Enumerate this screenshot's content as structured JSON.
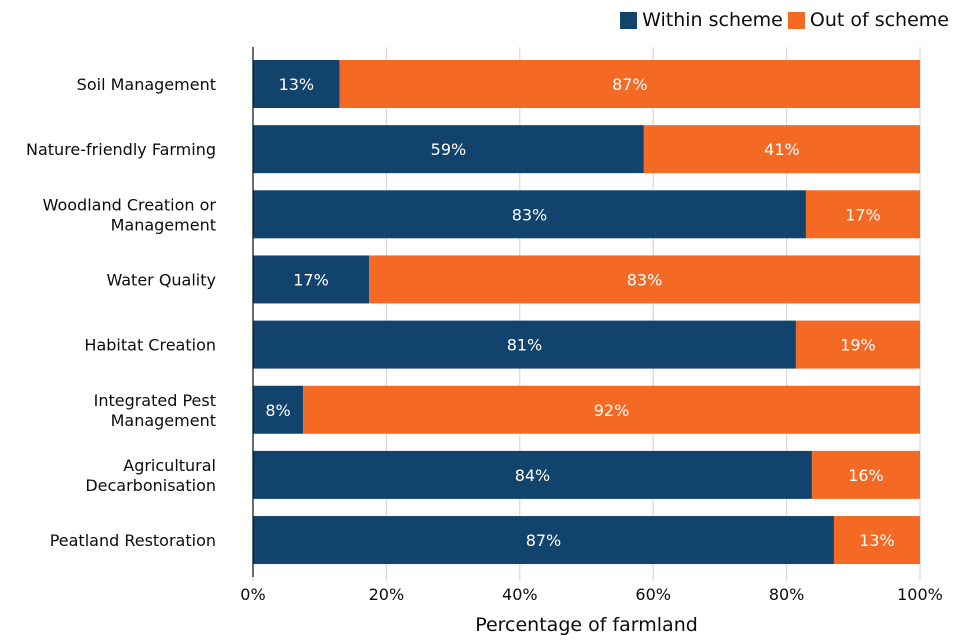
{
  "chart_data": {
    "type": "bar",
    "orientation": "horizontal",
    "stacked": true,
    "title": "",
    "xlabel": "Percentage of farmland",
    "ylabel": "",
    "xlim": [
      0,
      100
    ],
    "x_ticks": [
      0,
      20,
      40,
      60,
      80,
      100
    ],
    "x_tick_labels": [
      "0%",
      "20%",
      "40%",
      "60%",
      "80%",
      "100%"
    ],
    "grid": "vertical",
    "legend_position": "top-right",
    "categories": [
      [
        "Soil Management"
      ],
      [
        "Nature-friendly Farming"
      ],
      [
        "Woodland Creation or",
        "Management"
      ],
      [
        "Water Quality"
      ],
      [
        "Habitat Creation"
      ],
      [
        "Integrated Pest",
        "Management"
      ],
      [
        "Agricultural",
        "Decarbonisation"
      ],
      [
        "Peatland Restoration"
      ]
    ],
    "series": [
      {
        "name": "Within scheme",
        "color": "#12436D",
        "values": [
          13.0,
          58.6,
          82.9,
          17.4,
          81.4,
          7.5,
          83.8,
          87.1
        ],
        "labels": [
          "13%",
          "59%",
          "83%",
          "17%",
          "81%",
          "8%",
          "84%",
          "87%"
        ]
      },
      {
        "name": "Out of scheme",
        "color": "#F46A25",
        "values": [
          87.0,
          41.4,
          17.1,
          82.6,
          18.6,
          92.5,
          16.2,
          12.9
        ],
        "labels": [
          "87%",
          "41%",
          "17%",
          "83%",
          "19%",
          "92%",
          "16%",
          "13%"
        ]
      }
    ]
  },
  "legend": {
    "items": [
      {
        "label": "Within scheme",
        "color": "#12436D"
      },
      {
        "label": "Out of scheme",
        "color": "#F46A25"
      }
    ]
  }
}
